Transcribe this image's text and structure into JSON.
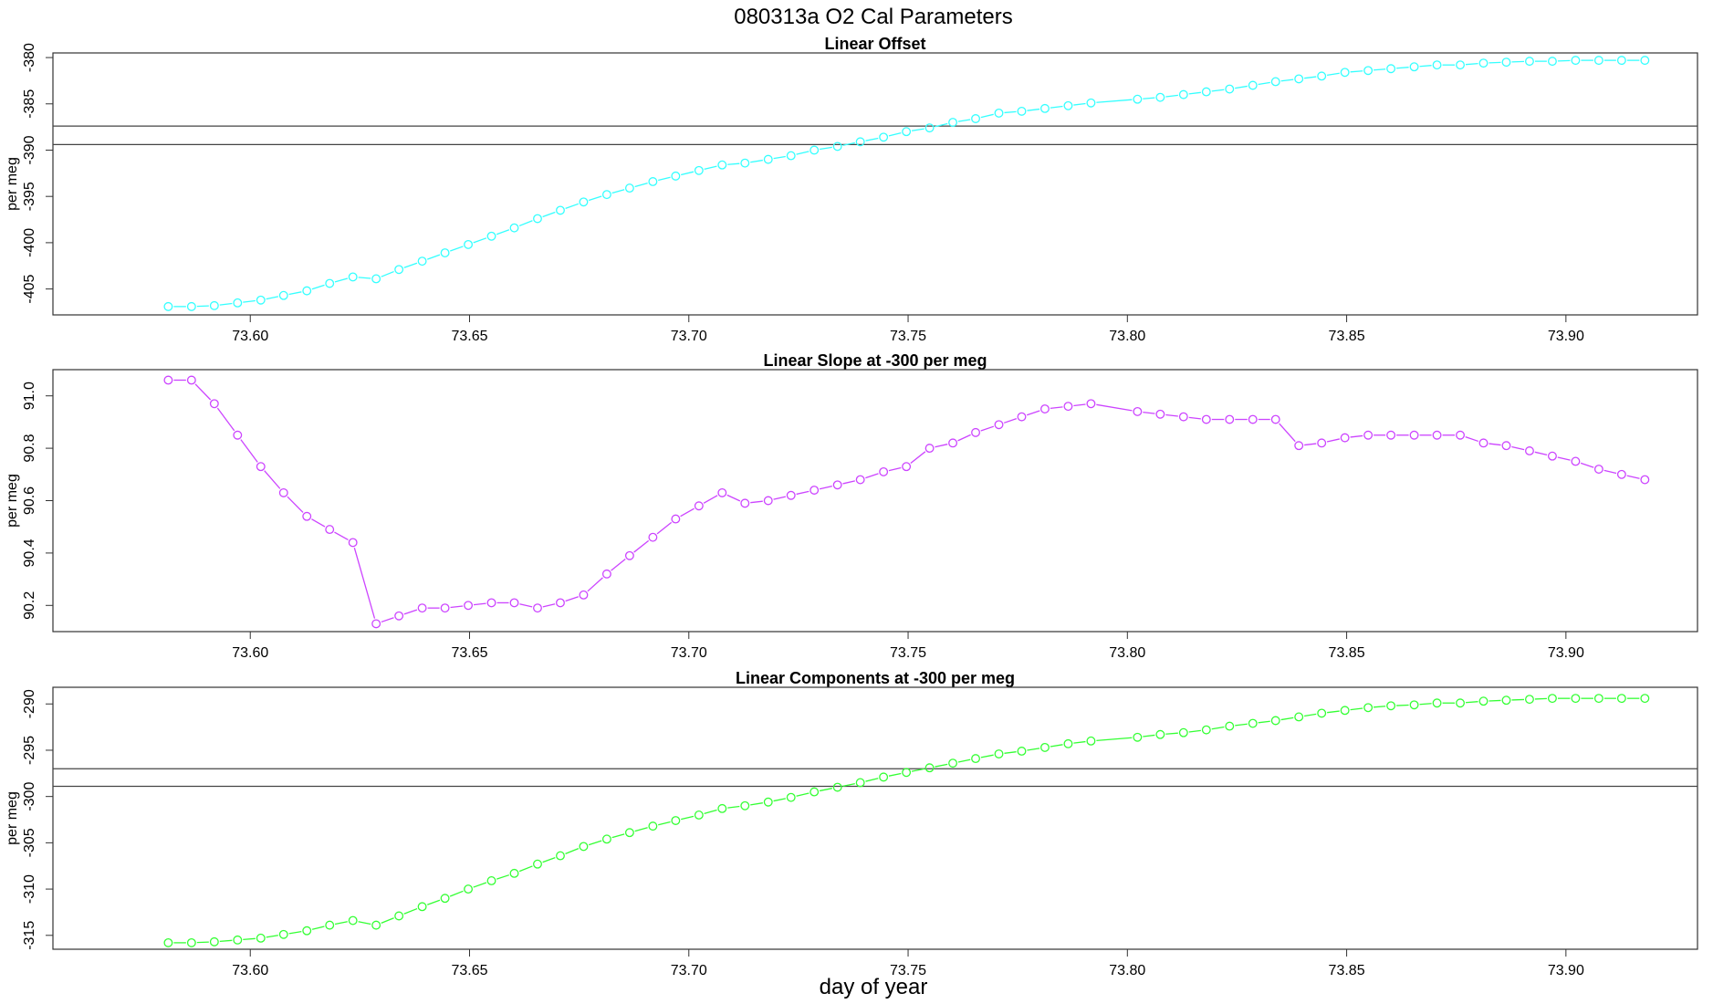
{
  "figure": {
    "title": "080313a   O2 Cal Parameters",
    "xlabel": "day of year"
  },
  "chart_data": [
    {
      "type": "line",
      "title": "Linear Offset",
      "ylabel": "per meg",
      "color": "#33ffff",
      "xlim": [
        73.555,
        73.93
      ],
      "ylim": [
        -407.8,
        -379.5
      ],
      "xticks": [
        "73.60",
        "73.65",
        "73.70",
        "73.75",
        "73.80",
        "73.85",
        "73.90"
      ],
      "yticks": [
        "-380",
        "-385",
        "-390",
        "-395",
        "-400",
        "-405"
      ],
      "hlines": [
        -387.4,
        -389.4
      ],
      "x": [
        73.5813,
        73.5866,
        73.5918,
        73.5971,
        73.6024,
        73.6076,
        73.6129,
        73.6181,
        73.6234,
        73.6287,
        73.6339,
        73.6392,
        73.6444,
        73.6497,
        73.655,
        73.6602,
        73.6655,
        73.6707,
        73.676,
        73.6813,
        73.6865,
        73.6918,
        73.697,
        73.7023,
        73.7076,
        73.7128,
        73.7181,
        73.7233,
        73.7286,
        73.7339,
        73.7391,
        73.7444,
        73.7496,
        73.7549,
        73.7602,
        73.7654,
        73.7707,
        73.7759,
        73.7812,
        73.7865,
        73.7917,
        73.8023,
        73.8075,
        73.8128,
        73.818,
        73.8233,
        73.8286,
        73.8338,
        73.8391,
        73.8443,
        73.8496,
        73.8549,
        73.8601,
        73.8654,
        73.8706,
        73.8759,
        73.8812,
        73.8864,
        73.8917,
        73.8969,
        73.9022,
        73.9075,
        73.9127,
        73.918
      ],
      "y": [
        -406.9,
        -406.9,
        -406.8,
        -406.5,
        -406.2,
        -405.7,
        -405.2,
        -404.4,
        -403.7,
        -403.9,
        -402.9,
        -402.0,
        -401.1,
        -400.2,
        -399.3,
        -398.4,
        -397.4,
        -396.5,
        -395.6,
        -394.8,
        -394.1,
        -393.4,
        -392.8,
        -392.2,
        -391.6,
        -391.4,
        -391.0,
        -390.6,
        -390.0,
        -389.6,
        -389.1,
        -388.6,
        -388.0,
        -387.6,
        -387.0,
        -386.6,
        -386.0,
        -385.8,
        -385.5,
        -385.2,
        -384.9,
        -384.5,
        -384.3,
        -384.0,
        -383.7,
        -383.4,
        -383.0,
        -382.6,
        -382.3,
        -382.0,
        -381.6,
        -381.4,
        -381.2,
        -381.0,
        -380.8,
        -380.8,
        -380.6,
        -380.5,
        -380.4,
        -380.4,
        -380.3,
        -380.3,
        -380.3,
        -380.3
      ]
    },
    {
      "type": "line",
      "title": "Linear Slope at -300 per meg",
      "ylabel": "per meg",
      "color": "#cc44ff",
      "xlim": [
        73.555,
        73.93
      ],
      "ylim": [
        90.1,
        91.1
      ],
      "xticks": [
        "73.60",
        "73.65",
        "73.70",
        "73.75",
        "73.80",
        "73.85",
        "73.90"
      ],
      "yticks": [
        "90.2",
        "90.4",
        "90.6",
        "90.8",
        "91.0"
      ],
      "hlines": [],
      "x": [
        73.5813,
        73.5866,
        73.5918,
        73.5971,
        73.6024,
        73.6076,
        73.6129,
        73.6181,
        73.6234,
        73.6287,
        73.6339,
        73.6392,
        73.6444,
        73.6497,
        73.655,
        73.6602,
        73.6655,
        73.6707,
        73.676,
        73.6813,
        73.6865,
        73.6918,
        73.697,
        73.7023,
        73.7076,
        73.7128,
        73.7181,
        73.7233,
        73.7286,
        73.7339,
        73.7391,
        73.7444,
        73.7496,
        73.7549,
        73.7602,
        73.7654,
        73.7707,
        73.7759,
        73.7812,
        73.7865,
        73.7917,
        73.8023,
        73.8075,
        73.8128,
        73.818,
        73.8233,
        73.8286,
        73.8338,
        73.8391,
        73.8443,
        73.8496,
        73.8549,
        73.8601,
        73.8654,
        73.8706,
        73.8759,
        73.8812,
        73.8864,
        73.8917,
        73.8969,
        73.9022,
        73.9075,
        73.9127,
        73.918
      ],
      "y": [
        91.06,
        91.06,
        90.97,
        90.85,
        90.73,
        90.63,
        90.54,
        90.49,
        90.44,
        90.13,
        90.16,
        90.19,
        90.19,
        90.2,
        90.21,
        90.21,
        90.19,
        90.21,
        90.24,
        90.32,
        90.39,
        90.46,
        90.53,
        90.58,
        90.63,
        90.59,
        90.6,
        90.62,
        90.64,
        90.66,
        90.68,
        90.71,
        90.73,
        90.8,
        90.82,
        90.86,
        90.89,
        90.92,
        90.95,
        90.96,
        90.97,
        90.94,
        90.93,
        90.92,
        90.91,
        90.91,
        90.91,
        90.91,
        90.81,
        90.82,
        90.84,
        90.85,
        90.85,
        90.85,
        90.85,
        90.85,
        90.82,
        90.81,
        90.79,
        90.77,
        90.75,
        90.72,
        90.7,
        90.68
      ]
    },
    {
      "type": "line",
      "title": "Linear Components at -300 per meg",
      "ylabel": "per meg",
      "color": "#33ff33",
      "xlim": [
        73.555,
        73.93
      ],
      "ylim": [
        -316.5,
        -288.2
      ],
      "xticks": [
        "73.60",
        "73.65",
        "73.70",
        "73.75",
        "73.80",
        "73.85",
        "73.90"
      ],
      "yticks": [
        "-290",
        "-295",
        "-300",
        "-305",
        "-310",
        "-315"
      ],
      "hlines": [
        -297.0,
        -298.9
      ],
      "x": [
        73.5813,
        73.5866,
        73.5918,
        73.5971,
        73.6024,
        73.6076,
        73.6129,
        73.6181,
        73.6234,
        73.6287,
        73.6339,
        73.6392,
        73.6444,
        73.6497,
        73.655,
        73.6602,
        73.6655,
        73.6707,
        73.676,
        73.6813,
        73.6865,
        73.6918,
        73.697,
        73.7023,
        73.7076,
        73.7128,
        73.7181,
        73.7233,
        73.7286,
        73.7339,
        73.7391,
        73.7444,
        73.7496,
        73.7549,
        73.7602,
        73.7654,
        73.7707,
        73.7759,
        73.7812,
        73.7865,
        73.7917,
        73.8023,
        73.8075,
        73.8128,
        73.818,
        73.8233,
        73.8286,
        73.8338,
        73.8391,
        73.8443,
        73.8496,
        73.8549,
        73.8601,
        73.8654,
        73.8706,
        73.8759,
        73.8812,
        73.8864,
        73.8917,
        73.8969,
        73.9022,
        73.9075,
        73.9127,
        73.918
      ],
      "y": [
        -315.8,
        -315.8,
        -315.7,
        -315.5,
        -315.3,
        -314.9,
        -314.5,
        -313.9,
        -313.4,
        -313.9,
        -312.9,
        -311.9,
        -311.0,
        -310.0,
        -309.1,
        -308.3,
        -307.3,
        -306.4,
        -305.4,
        -304.6,
        -303.9,
        -303.2,
        -302.6,
        -302.0,
        -301.3,
        -301.0,
        -300.6,
        -300.1,
        -299.5,
        -299.0,
        -298.5,
        -297.9,
        -297.4,
        -296.9,
        -296.4,
        -295.9,
        -295.4,
        -295.1,
        -294.7,
        -294.3,
        -294.0,
        -293.6,
        -293.3,
        -293.1,
        -292.8,
        -292.4,
        -292.1,
        -291.8,
        -291.4,
        -291.0,
        -290.7,
        -290.4,
        -290.2,
        -290.1,
        -289.9,
        -289.9,
        -289.7,
        -289.6,
        -289.5,
        -289.4,
        -289.4,
        -289.4,
        -289.4,
        -289.4
      ]
    }
  ]
}
